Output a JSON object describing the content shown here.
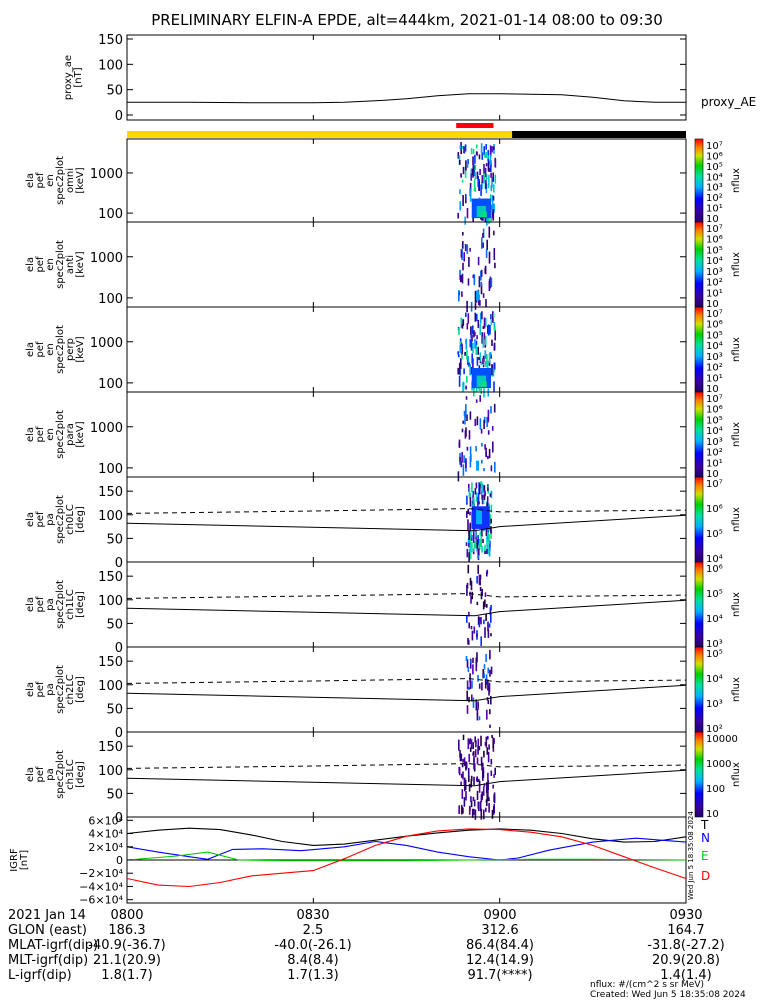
{
  "title": "PRELIMINARY ELFIN-A EPDE, alt=444km, 2021-01-14 08:00 to 09:30",
  "time_axis": {
    "date_label": "2021 Jan 14",
    "ticks": [
      "0800",
      "0830",
      "0900",
      "0930"
    ],
    "tick_minutes": [
      0,
      30,
      60,
      90
    ],
    "range_minutes": [
      0,
      90
    ]
  },
  "footer_rows": [
    {
      "label": "GLON (east)",
      "values": [
        "186.3",
        "2.5",
        "312.6",
        "164.7"
      ]
    },
    {
      "label": "MLAT-igrf(dip)",
      "values": [
        "-40.9(-36.7)",
        "-40.0(-26.1)",
        "86.4(84.4)",
        "-31.8(-27.2)"
      ]
    },
    {
      "label": "MLT-igrf(dip)",
      "values": [
        "21.1(20.9)",
        "8.4(8.4)",
        "12.4(14.9)",
        "20.9(20.8)"
      ]
    },
    {
      "label": "L-igrf(dip)",
      "values": [
        "1.8(1.7)",
        "1.7(1.3)",
        "91.7(****)",
        "1.4(1.4)"
      ]
    }
  ],
  "footnote_units": "nflux: #/(cm^2 s sr MeV)",
  "footnote_created": "Created: Wed Jun  5 18:35:08 2024",
  "side_timestamp": "Wed Jun  5 18:35:08 2024",
  "colors": {
    "sci_zone_bar": "#ffd700",
    "shadow_bar": "#000000",
    "science_bar": "#ff0000",
    "igrf_N": "#0000ff",
    "igrf_E": "#00cc00",
    "igrf_D": "#ff0000",
    "igrf_T": "#000000"
  },
  "chart_data": [
    {
      "id": "proxy_ae",
      "type": "line",
      "ylabel": "proxy_ae [nT]",
      "ylim": [
        0,
        150
      ],
      "yticks": [
        "0",
        "50",
        "100",
        "150"
      ],
      "legend": "proxy_AE",
      "x_minutes": [
        0,
        10,
        20,
        30,
        35,
        40,
        45,
        50,
        55,
        60,
        70,
        75,
        80,
        85,
        90
      ],
      "y": [
        25,
        25,
        24,
        24,
        25,
        28,
        32,
        38,
        42,
        42,
        40,
        35,
        28,
        25,
        25
      ]
    },
    {
      "id": "orbit_bars",
      "type": "bar",
      "sci_zone_minutes": [
        0,
        62
      ],
      "shadow_minutes": [
        62,
        90
      ],
      "science_minutes": [
        53,
        59
      ]
    },
    {
      "id": "spec_omni",
      "type": "heatmap",
      "ylabel": "ela pef en spec2plot omni [keV]",
      "ylim": [
        60,
        7000
      ],
      "yticks": [
        "100",
        "1000"
      ],
      "ytick_values": [
        100,
        1000
      ],
      "yscale": "log",
      "colorbar_ticks": [
        "10",
        "10¹",
        "10²",
        "10³",
        "10⁴",
        "10⁵",
        "10⁶",
        "10⁷"
      ],
      "colorbar_label": "nflux",
      "burst_minutes": [
        53.2,
        59.2
      ],
      "intensity": "high"
    },
    {
      "id": "spec_anti",
      "type": "heatmap",
      "ylabel": "ela pef en spec2plot anti [keV]",
      "ylim": [
        60,
        7000
      ],
      "yticks": [
        "100",
        "1000"
      ],
      "ytick_values": [
        100,
        1000
      ],
      "yscale": "log",
      "colorbar_ticks": [
        "10",
        "10¹",
        "10²",
        "10³",
        "10⁴",
        "10⁵",
        "10⁶",
        "10⁷"
      ],
      "colorbar_label": "nflux",
      "burst_minutes": [
        53.2,
        59.2
      ],
      "intensity": "low"
    },
    {
      "id": "spec_perp",
      "type": "heatmap",
      "ylabel": "ela pef en spec2plot perp [keV]",
      "ylim": [
        60,
        7000
      ],
      "yticks": [
        "100",
        "1000"
      ],
      "ytick_values": [
        100,
        1000
      ],
      "yscale": "log",
      "colorbar_ticks": [
        "10",
        "10¹",
        "10²",
        "10³",
        "10⁴",
        "10⁵",
        "10⁶",
        "10⁷"
      ],
      "colorbar_label": "nflux",
      "burst_minutes": [
        53.2,
        59.2
      ],
      "intensity": "high"
    },
    {
      "id": "spec_para",
      "type": "heatmap",
      "ylabel": "ela pef en spec2plot para [keV]",
      "ylim": [
        60,
        7000
      ],
      "yticks": [
        "100",
        "1000"
      ],
      "ytick_values": [
        100,
        1000
      ],
      "yscale": "log",
      "colorbar_ticks": [
        "10",
        "10¹",
        "10²",
        "10³",
        "10⁴",
        "10⁵",
        "10⁶",
        "10⁷"
      ],
      "colorbar_label": "nflux",
      "burst_minutes": [
        53.2,
        59.2
      ],
      "intensity": "low"
    },
    {
      "id": "pa_ch0",
      "type": "heatmap",
      "ylabel": "ela pef pa spec2plot ch0LC [deg]",
      "ylim": [
        0,
        180
      ],
      "yticks": [
        "0",
        "50",
        "100",
        "150"
      ],
      "ytick_values": [
        0,
        50,
        100,
        150
      ],
      "yscale": "linear",
      "colorbar_ticks": [
        "10⁴",
        "10⁵",
        "10⁶",
        "10⁷"
      ],
      "colorbar_label": "nflux",
      "burst_minutes": [
        54.5,
        58.6
      ],
      "intensity": "high",
      "lc_solid": {
        "x_minutes": [
          0,
          56,
          60,
          90
        ],
        "y": [
          82,
          66,
          75,
          99
        ]
      },
      "lc_dashed": {
        "x_minutes": [
          0,
          30,
          55,
          60,
          90
        ],
        "y": [
          103,
          108,
          113,
          106,
          110
        ]
      }
    },
    {
      "id": "pa_ch1",
      "type": "heatmap",
      "ylabel": "ela pef pa spec2plot ch1LC [deg]",
      "ylim": [
        0,
        180
      ],
      "yticks": [
        "0",
        "50",
        "100",
        "150"
      ],
      "ytick_values": [
        0,
        50,
        100,
        150
      ],
      "yscale": "linear",
      "colorbar_ticks": [
        "10³",
        "10⁴",
        "10⁵",
        "10⁶"
      ],
      "colorbar_label": "nflux",
      "burst_minutes": [
        54.5,
        58.6
      ],
      "intensity": "mid",
      "lc_solid": {
        "x_minutes": [
          0,
          56,
          60,
          90
        ],
        "y": [
          82,
          66,
          75,
          99
        ]
      },
      "lc_dashed": {
        "x_minutes": [
          0,
          30,
          55,
          60,
          90
        ],
        "y": [
          103,
          108,
          113,
          106,
          110
        ]
      }
    },
    {
      "id": "pa_ch2",
      "type": "heatmap",
      "ylabel": "ela pef pa spec2plot ch2LC [deg]",
      "ylim": [
        0,
        180
      ],
      "yticks": [
        "0",
        "50",
        "100",
        "150"
      ],
      "ytick_values": [
        0,
        50,
        100,
        150
      ],
      "yscale": "linear",
      "colorbar_ticks": [
        "10²",
        "10³",
        "10⁴",
        "10⁵"
      ],
      "colorbar_label": "nflux",
      "burst_minutes": [
        54.5,
        58.6
      ],
      "intensity": "low",
      "lc_solid": {
        "x_minutes": [
          0,
          56,
          60,
          90
        ],
        "y": [
          82,
          66,
          75,
          99
        ]
      },
      "lc_dashed": {
        "x_minutes": [
          0,
          30,
          55,
          60,
          90
        ],
        "y": [
          103,
          108,
          113,
          106,
          110
        ]
      }
    },
    {
      "id": "pa_ch3",
      "type": "heatmap",
      "ylabel": "ela pef pa spec2plot ch3LC [deg]",
      "ylim": [
        0,
        180
      ],
      "yticks": [
        "0",
        "50",
        "100",
        "150"
      ],
      "ytick_values": [
        0,
        50,
        100,
        150
      ],
      "yscale": "linear",
      "colorbar_ticks": [
        "10",
        "100",
        "1000",
        "10000"
      ],
      "colorbar_label": "nflux",
      "burst_minutes": [
        53.2,
        59.2
      ],
      "intensity": "dark",
      "lc_solid": {
        "x_minutes": [
          0,
          56,
          60,
          90
        ],
        "y": [
          82,
          66,
          75,
          99
        ]
      },
      "lc_dashed": {
        "x_minutes": [
          0,
          30,
          55,
          60,
          90
        ],
        "y": [
          103,
          108,
          113,
          106,
          110
        ]
      }
    },
    {
      "id": "igrf",
      "type": "line",
      "ylabel": "IGRF [nT]",
      "ylim": [
        -65000,
        65000
      ],
      "yticks": [
        "6×10⁴",
        "4×10⁴",
        "2×10⁴",
        "0",
        "−2×10⁴",
        "−4×10⁴",
        "−6×10⁴"
      ],
      "ytick_values": [
        60000,
        40000,
        20000,
        0,
        -20000,
        -40000,
        -60000
      ],
      "series": [
        {
          "name": "T",
          "color": "#000000",
          "x_minutes": [
            0,
            5,
            10,
            15,
            20,
            25,
            30,
            35,
            40,
            45,
            50,
            55,
            60,
            65,
            70,
            75,
            80,
            85,
            90
          ],
          "y": [
            40000,
            45000,
            48000,
            46000,
            38000,
            28000,
            22000,
            24000,
            30000,
            36000,
            41000,
            45000,
            47000,
            45000,
            40000,
            32000,
            27000,
            28000,
            35000
          ]
        },
        {
          "name": "N",
          "color": "#0000ff",
          "x_minutes": [
            0,
            5,
            10,
            13,
            17,
            22,
            28,
            35,
            40,
            45,
            50,
            55,
            60,
            63,
            68,
            75,
            82,
            86,
            90
          ],
          "y": [
            20000,
            12000,
            5000,
            1000,
            16000,
            17000,
            14000,
            20000,
            28000,
            22000,
            12000,
            5000,
            0,
            3000,
            15000,
            27000,
            33000,
            30000,
            27000
          ]
        },
        {
          "name": "E",
          "color": "#00cc00",
          "x_minutes": [
            0,
            8,
            13,
            18,
            25,
            35,
            45,
            55,
            65,
            75,
            90
          ],
          "y": [
            0,
            6000,
            12000,
            0,
            -1000,
            -1000,
            -1000,
            0,
            1000,
            1000,
            0
          ]
        },
        {
          "name": "D",
          "color": "#ff0000",
          "x_minutes": [
            0,
            5,
            10,
            15,
            20,
            25,
            30,
            35,
            40,
            45,
            50,
            55,
            60,
            65,
            70,
            75,
            80,
            85,
            90
          ],
          "y": [
            -28000,
            -38000,
            -40000,
            -34000,
            -24000,
            -20000,
            -16000,
            2000,
            22000,
            36000,
            44000,
            47000,
            46000,
            42000,
            35000,
            22000,
            5000,
            -12000,
            -28000
          ]
        }
      ]
    }
  ]
}
